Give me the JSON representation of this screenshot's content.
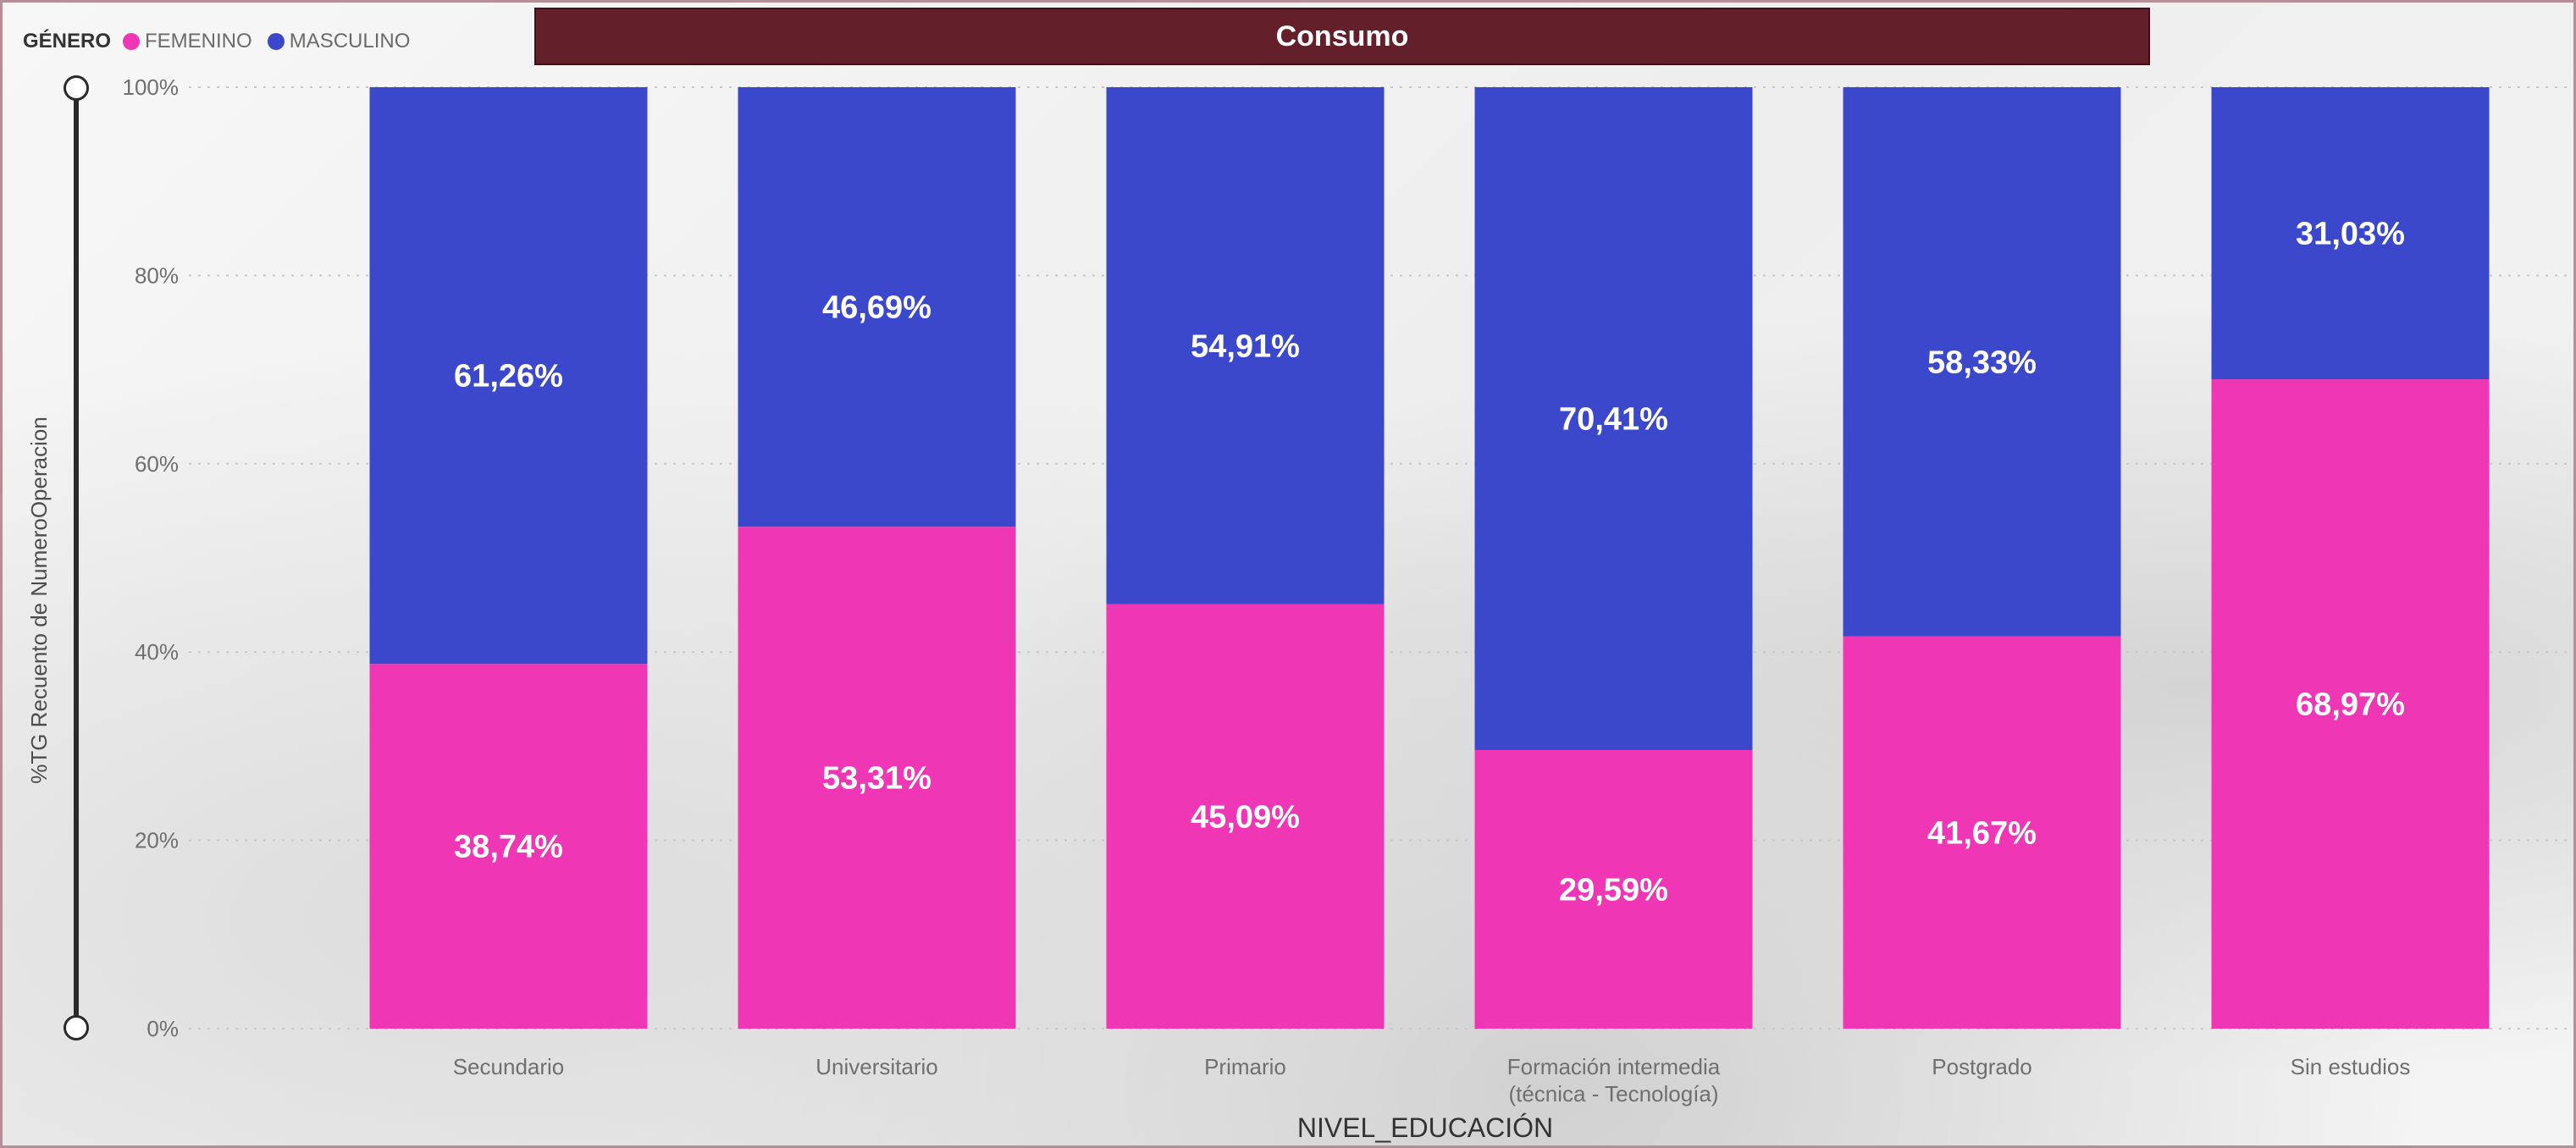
{
  "chart_data": {
    "type": "bar",
    "stacked": true,
    "title": "Consumo",
    "legend_title": "GÉNERO",
    "legend_position": "top-left",
    "xlabel": "NIVEL_EDUCACIÓN",
    "ylabel": "%TG Recuento de NumeroOperacion",
    "ylim": [
      0,
      100
    ],
    "yticks": [
      "0%",
      "20%",
      "40%",
      "60%",
      "80%",
      "100%"
    ],
    "grid": true,
    "categories": [
      [
        "Secundario"
      ],
      [
        "Universitario"
      ],
      [
        "Primario"
      ],
      [
        "Formación intermedia",
        "(técnica - Tecnología)"
      ],
      [
        "Postgrado"
      ],
      [
        "Sin estudios"
      ]
    ],
    "series": [
      {
        "name": "FEMENINO",
        "color": "#ef37b6",
        "values": [
          38.74,
          53.31,
          45.09,
          29.59,
          41.67,
          68.97
        ],
        "labels": [
          "38,74%",
          "53,31%",
          "45,09%",
          "29,59%",
          "41,67%",
          "68,97%"
        ]
      },
      {
        "name": "MASCULINO",
        "color": "#3c48cc",
        "values": [
          61.26,
          46.69,
          54.91,
          70.41,
          58.33,
          31.03
        ],
        "labels": [
          "61,26%",
          "46,69%",
          "54,91%",
          "70,41%",
          "58,33%",
          "31,03%"
        ]
      }
    ]
  }
}
